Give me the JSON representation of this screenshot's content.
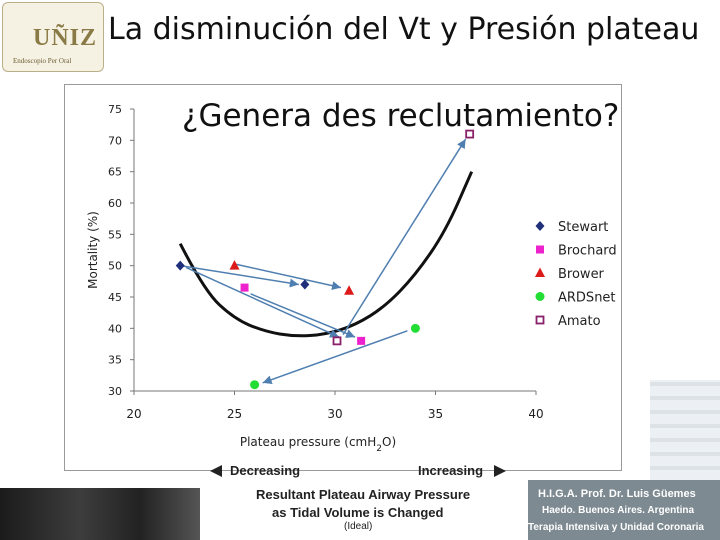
{
  "header": {
    "logo_text": "UÑIZ",
    "logo_tagline": "Endoscopio Per Oral",
    "title": "La disminución del Vt y Presión plateau"
  },
  "chart_data": {
    "type": "scatter",
    "title": "¿Genera des reclutamiento?",
    "xlabel_parts": [
      "Plateau pressure (cm",
      "H",
      "2",
      "O)"
    ],
    "ylabel": "Mortality (%)",
    "xlim": [
      20,
      40
    ],
    "ylim": [
      30,
      75
    ],
    "xticks": [
      20,
      25,
      30,
      35,
      40
    ],
    "yticks": [
      30,
      35,
      40,
      45,
      50,
      55,
      60,
      65,
      70,
      75
    ],
    "legend_position": "right",
    "series": [
      {
        "name": "Stewart",
        "marker": "diamond",
        "color": "#1f2f7a",
        "points": [
          [
            22.3,
            50
          ],
          [
            28.5,
            47
          ]
        ]
      },
      {
        "name": "Brochard",
        "marker": "square",
        "color": "#ee22cc",
        "points": [
          [
            25.5,
            46.5
          ],
          [
            31.3,
            38
          ]
        ]
      },
      {
        "name": "Brower",
        "marker": "triangle",
        "color": "#dd1a1a",
        "points": [
          [
            25,
            50
          ],
          [
            30.7,
            46
          ]
        ]
      },
      {
        "name": "ARDSnet",
        "marker": "circle",
        "color": "#22dd33",
        "points": [
          [
            26,
            31
          ],
          [
            34,
            40
          ]
        ]
      },
      {
        "name": "Amato",
        "marker": "square-open",
        "color": "#8a1f6a",
        "points": [
          [
            36.7,
            71
          ],
          [
            30.1,
            38
          ]
        ]
      }
    ],
    "arrows": [
      [
        [
          22.3,
          50
        ],
        [
          28.2,
          47
        ]
      ],
      [
        [
          25.1,
          50.2
        ],
        [
          30.3,
          46.5
        ]
      ],
      [
        [
          25.8,
          45.5
        ],
        [
          31.0,
          38.6
        ]
      ],
      [
        [
          22.6,
          49.7
        ],
        [
          30.2,
          38.6
        ]
      ],
      [
        [
          30.4,
          39.0
        ],
        [
          36.5,
          70.2
        ]
      ],
      [
        [
          33.6,
          39.6
        ],
        [
          26.4,
          31.3
        ]
      ]
    ],
    "trend_curve": [
      [
        22.3,
        53.5
      ],
      [
        23.5,
        46
      ],
      [
        25,
        41.5
      ],
      [
        26.5,
        39.5
      ],
      [
        28,
        38.7
      ],
      [
        29.5,
        39
      ],
      [
        31,
        40.5
      ],
      [
        32.5,
        43.5
      ],
      [
        34,
        48.5
      ],
      [
        35.5,
        55.5
      ],
      [
        36.8,
        65
      ]
    ]
  },
  "footer": {
    "decreasing": "Decreasing",
    "increasing": "Increasing",
    "line1": "Resultant Plateau Airway Pressure",
    "line2": "as Tidal Volume is Changed",
    "line3": "(Ideal)"
  },
  "hospital": {
    "line1": "H.I.G.A. Prof. Dr. Luis Güemes",
    "line2": "Haedo. Buenos Aires. Argentina",
    "line3": "Terapia Intensiva y Unidad Coronaria"
  }
}
